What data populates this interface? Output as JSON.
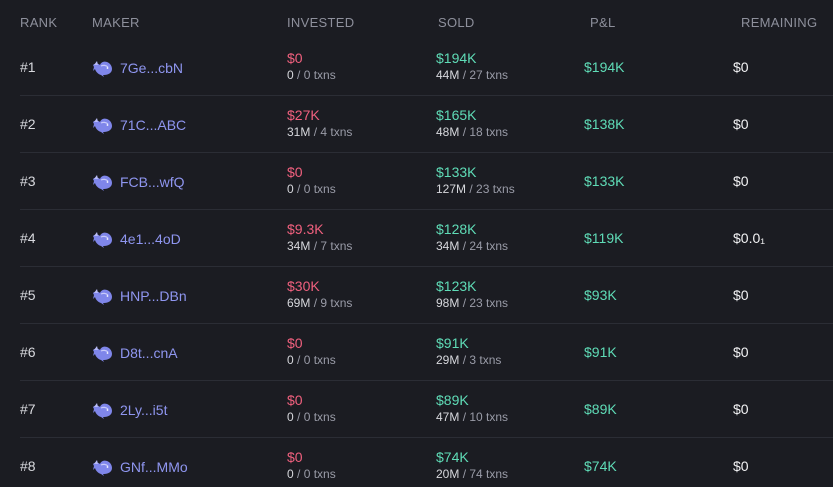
{
  "colors": {
    "background": "#1b1c22",
    "negative": "#f0607e",
    "positive": "#5fdcb7",
    "link": "#8f96f0",
    "muted": "#8e909c"
  },
  "headers": {
    "rank": "RANK",
    "maker": "MAKER",
    "invested": "INVESTED",
    "sold": "SOLD",
    "pnl": "P&L",
    "remaining": "REMAINING"
  },
  "rows": [
    {
      "rank": "#1",
      "maker": "7Ge...cbN",
      "invested": "$0",
      "invested_amount": "0",
      "invested_txns": "/ 0 txns",
      "sold": "$194K",
      "sold_amount": "44M",
      "sold_txns": "/ 27 txns",
      "pnl": "$194K",
      "remaining": "$0"
    },
    {
      "rank": "#2",
      "maker": "71C...ABC",
      "invested": "$27K",
      "invested_amount": "31M",
      "invested_txns": "/ 4 txns",
      "sold": "$165K",
      "sold_amount": "48M",
      "sold_txns": "/ 18 txns",
      "pnl": "$138K",
      "remaining": "$0"
    },
    {
      "rank": "#3",
      "maker": "FCB...wfQ",
      "invested": "$0",
      "invested_amount": "0",
      "invested_txns": "/ 0 txns",
      "sold": "$133K",
      "sold_amount": "127M",
      "sold_txns": "/ 23 txns",
      "pnl": "$133K",
      "remaining": "$0"
    },
    {
      "rank": "#4",
      "maker": "4e1...4oD",
      "invested": "$9.3K",
      "invested_amount": "34M",
      "invested_txns": "/ 7 txns",
      "sold": "$128K",
      "sold_amount": "34M",
      "sold_txns": "/ 24 txns",
      "pnl": "$119K",
      "remaining": "$0.0₁"
    },
    {
      "rank": "#5",
      "maker": "HNP...DBn",
      "invested": "$30K",
      "invested_amount": "69M",
      "invested_txns": "/ 9 txns",
      "sold": "$123K",
      "sold_amount": "98M",
      "sold_txns": "/ 23 txns",
      "pnl": "$93K",
      "remaining": "$0"
    },
    {
      "rank": "#6",
      "maker": "D8t...cnA",
      "invested": "$0",
      "invested_amount": "0",
      "invested_txns": "/ 0 txns",
      "sold": "$91K",
      "sold_amount": "29M",
      "sold_txns": "/ 3 txns",
      "pnl": "$91K",
      "remaining": "$0"
    },
    {
      "rank": "#7",
      "maker": "2Ly...i5t",
      "invested": "$0",
      "invested_amount": "0",
      "invested_txns": "/ 0 txns",
      "sold": "$89K",
      "sold_amount": "47M",
      "sold_txns": "/ 10 txns",
      "pnl": "$89K",
      "remaining": "$0"
    },
    {
      "rank": "#8",
      "maker": "GNf...MMo",
      "invested": "$0",
      "invested_amount": "0",
      "invested_txns": "/ 0 txns",
      "sold": "$74K",
      "sold_amount": "20M",
      "sold_txns": "/ 74 txns",
      "pnl": "$74K",
      "remaining": "$0"
    }
  ]
}
